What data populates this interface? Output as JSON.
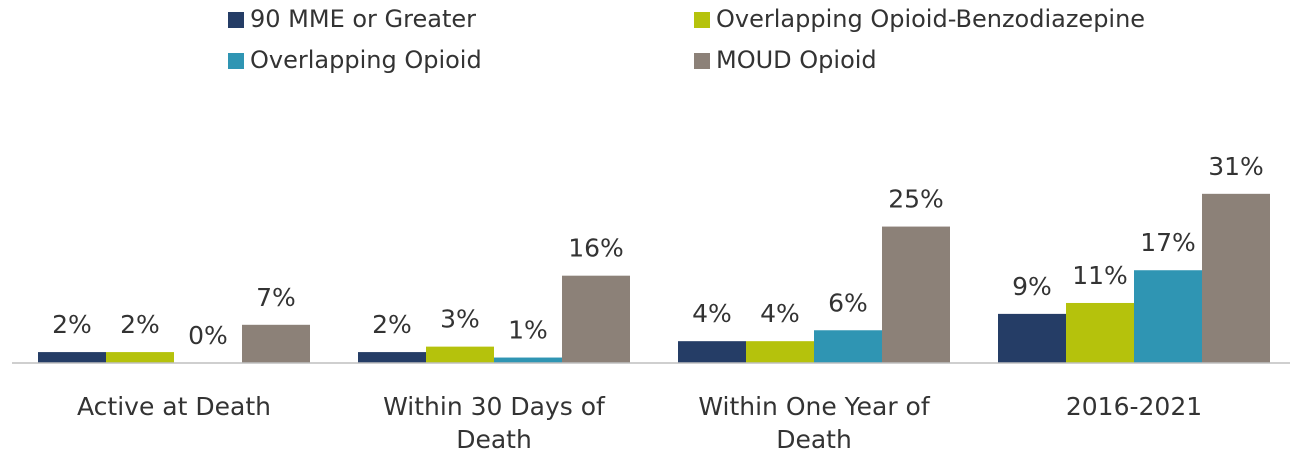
{
  "chart_data": {
    "type": "bar",
    "categories": [
      "Active at Death",
      "Within 30 Days of Death",
      "Within One Year of Death",
      "2016-2021"
    ],
    "series": [
      {
        "name": "90 MME or Greater",
        "color": "#253d66",
        "values": [
          2,
          2,
          4,
          9
        ],
        "value_labels": [
          "2%",
          "2%",
          "4%",
          "9%"
        ]
      },
      {
        "name": "Overlapping Opioid-Benzodiazepine",
        "color": "#b5c20c",
        "values": [
          2,
          3,
          4,
          11
        ],
        "value_labels": [
          "2%",
          "3%",
          "4%",
          "11%"
        ]
      },
      {
        "name": "Overlapping Opioid",
        "color": "#2f95b3",
        "values": [
          0,
          1,
          6,
          17
        ],
        "value_labels": [
          "0%",
          "1%",
          "6%",
          "17%"
        ]
      },
      {
        "name": "MOUD Opioid",
        "color": "#8c8178",
        "values": [
          7,
          16,
          25,
          31
        ],
        "value_labels": [
          "7%",
          "16%",
          "25%",
          "31%"
        ]
      }
    ],
    "ylim": [
      0,
      35
    ]
  }
}
